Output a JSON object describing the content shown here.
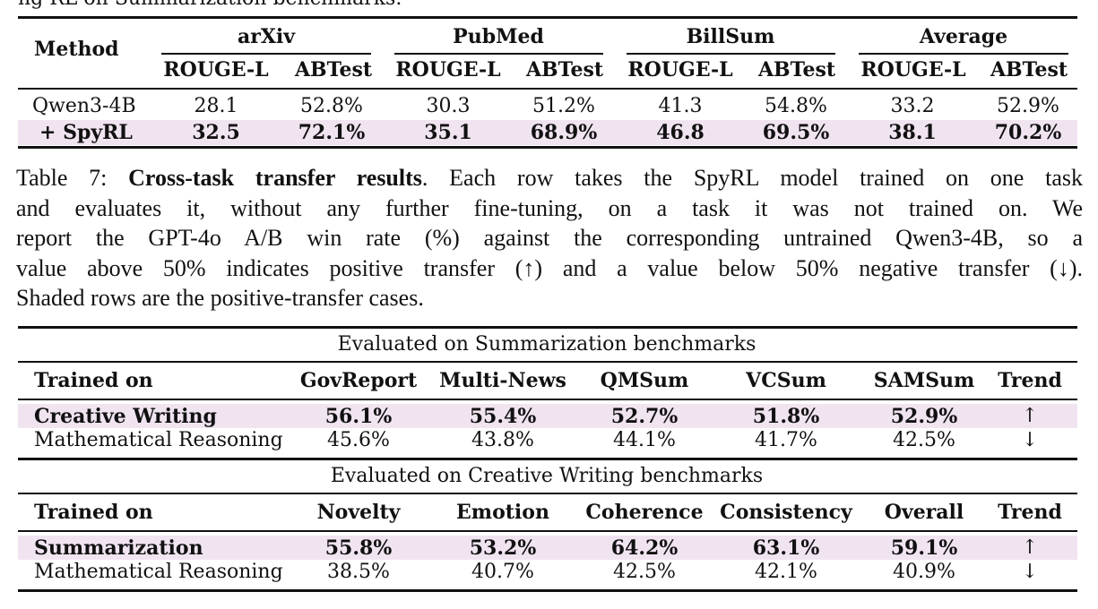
{
  "top_fragment": "ng RL  on  Summarization  benchmarks.",
  "table1": {
    "method_header": "Method",
    "groups": [
      "arXiv",
      "PubMed",
      "BillSum",
      "Average"
    ],
    "subheaders": [
      "ROUGE-L",
      "ABTest",
      "ROUGE-L",
      "ABTest",
      "ROUGE-L",
      "ABTest",
      "ROUGE-L",
      "ABTest"
    ],
    "rows": [
      {
        "method": "Qwen3-4B",
        "values": [
          "28.1",
          "52.8%",
          "30.3",
          "51.2%",
          "41.3",
          "54.8%",
          "33.2",
          "52.9%"
        ]
      },
      {
        "method": "+ SpyRL",
        "values": [
          "32.5",
          "72.1%",
          "35.1",
          "68.9%",
          "46.8",
          "69.5%",
          "38.1",
          "70.2%"
        ]
      }
    ]
  },
  "caption": {
    "label": "Table 7: ",
    "bold": "Cross-task transfer results",
    "line1_rest": ". Each row takes the SpyRL model trained on one task",
    "line2": "and evaluates it, without any further fine-tuning, on a task it was not trained on.  We",
    "line3": "report the GPT-4o A/B win rate (%) against the corresponding untrained Qwen3-4B, so a",
    "line4": "value above 50% indicates positive transfer (↑) and a value below 50% negative transfer (↓).",
    "line5": "Shaded rows are the positive-transfer cases."
  },
  "table2": {
    "section1_title": "Evaluated on Summarization benchmarks",
    "section1_header": [
      "Trained on",
      "GovReport",
      "Multi-News",
      "QMSum",
      "VCSum",
      "SAMSum",
      "Trend"
    ],
    "section1_rows": [
      {
        "label": "Creative Writing",
        "values": [
          "56.1%",
          "55.4%",
          "52.7%",
          "51.8%",
          "52.9%"
        ],
        "trend": "↑"
      },
      {
        "label": "Mathematical Reasoning",
        "values": [
          "45.6%",
          "43.8%",
          "44.1%",
          "41.7%",
          "42.5%"
        ],
        "trend": "↓"
      }
    ],
    "section2_title": "Evaluated on Creative Writing benchmarks",
    "section2_header": [
      "Trained on",
      "Novelty",
      "Emotion",
      "Coherence",
      "Consistency",
      "Overall",
      "Trend"
    ],
    "section2_rows": [
      {
        "label": "Summarization",
        "values": [
          "55.8%",
          "53.2%",
          "64.2%",
          "63.1%",
          "59.1%"
        ],
        "trend": "↑"
      },
      {
        "label": "Mathematical Reasoning",
        "values": [
          "38.5%",
          "40.7%",
          "42.5%",
          "42.1%",
          "40.9%"
        ],
        "trend": "↓"
      }
    ]
  },
  "colors": {
    "shade": "#f1e4f1",
    "rule": "#111111"
  }
}
